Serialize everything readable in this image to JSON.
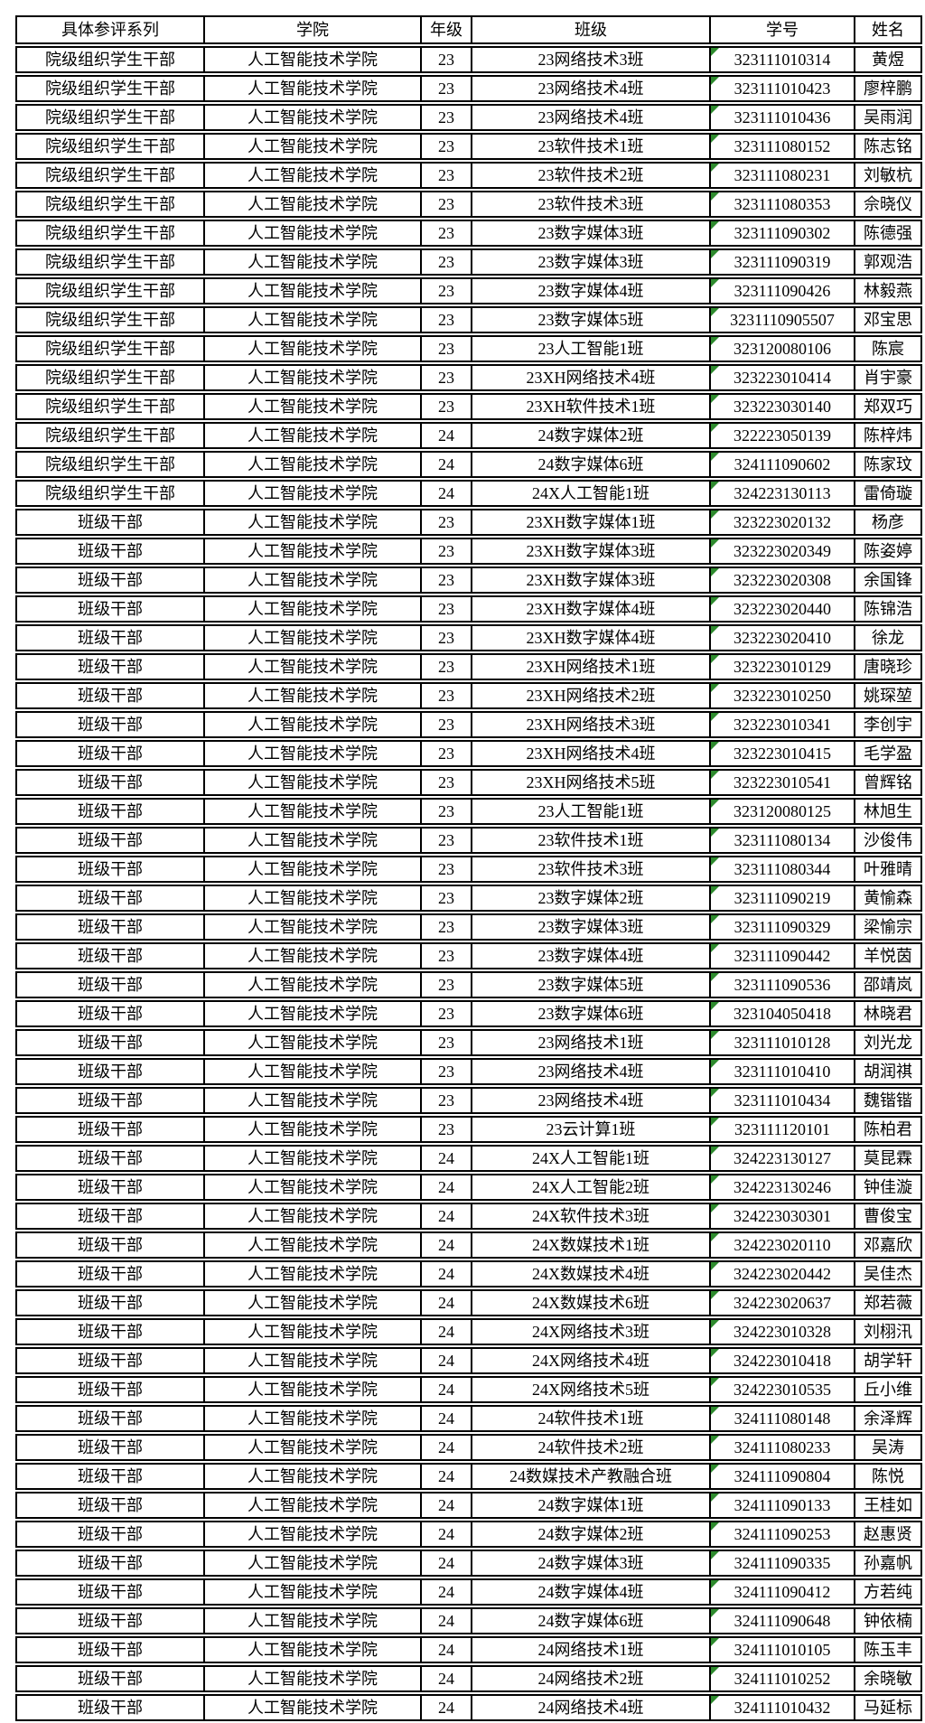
{
  "page": {
    "background": "#ffffff",
    "border_color": "#000000",
    "text_color": "#000000"
  },
  "table": {
    "columns": [
      "具体参评系列",
      "学院",
      "年级",
      "班级",
      "学号",
      "姓名"
    ],
    "cell_names": [
      "series-cell",
      "college-cell",
      "grade-cell",
      "class-cell",
      "student-id-cell",
      "name-cell"
    ],
    "id_column_index": 4,
    "error_indicator": {
      "name": "number-stored-as-text",
      "color": "#2e8b2e"
    },
    "rows": [
      [
        "院级组织学生干部",
        "人工智能技术学院",
        "23",
        "23网络技术3班",
        "323111010314",
        "黄煜"
      ],
      [
        "院级组织学生干部",
        "人工智能技术学院",
        "23",
        "23网络技术4班",
        "323111010423",
        "廖梓鹏"
      ],
      [
        "院级组织学生干部",
        "人工智能技术学院",
        "23",
        "23网络技术4班",
        "323111010436",
        "吴雨润"
      ],
      [
        "院级组织学生干部",
        "人工智能技术学院",
        "23",
        "23软件技术1班",
        "323111080152",
        "陈志铭"
      ],
      [
        "院级组织学生干部",
        "人工智能技术学院",
        "23",
        "23软件技术2班",
        "323111080231",
        "刘敏杭"
      ],
      [
        "院级组织学生干部",
        "人工智能技术学院",
        "23",
        "23软件技术3班",
        "323111080353",
        "佘晓仪"
      ],
      [
        "院级组织学生干部",
        "人工智能技术学院",
        "23",
        "23数字媒体3班",
        "323111090302",
        "陈德强"
      ],
      [
        "院级组织学生干部",
        "人工智能技术学院",
        "23",
        "23数字媒体3班",
        "323111090319",
        "郭观浩"
      ],
      [
        "院级组织学生干部",
        "人工智能技术学院",
        "23",
        "23数字媒体4班",
        "323111090426",
        "林毅燕"
      ],
      [
        "院级组织学生干部",
        "人工智能技术学院",
        "23",
        "23数字媒体5班",
        "3231110905507",
        "邓宝思"
      ],
      [
        "院级组织学生干部",
        "人工智能技术学院",
        "23",
        "23人工智能1班",
        "323120080106",
        "陈宸"
      ],
      [
        "院级组织学生干部",
        "人工智能技术学院",
        "23",
        "23XH网络技术4班",
        "323223010414",
        "肖宇豪"
      ],
      [
        "院级组织学生干部",
        "人工智能技术学院",
        "23",
        "23XH软件技术1班",
        "323223030140",
        "郑双巧"
      ],
      [
        "院级组织学生干部",
        "人工智能技术学院",
        "24",
        "24数字媒体2班",
        "322223050139",
        "陈梓炜"
      ],
      [
        "院级组织学生干部",
        "人工智能技术学院",
        "24",
        "24数字媒体6班",
        "324111090602",
        "陈家玟"
      ],
      [
        "院级组织学生干部",
        "人工智能技术学院",
        "24",
        "24X人工智能1班",
        "324223130113",
        "雷倚璇"
      ],
      [
        "班级干部",
        "人工智能技术学院",
        "23",
        "23XH数字媒体1班",
        "323223020132",
        "杨彦"
      ],
      [
        "班级干部",
        "人工智能技术学院",
        "23",
        "23XH数字媒体3班",
        "323223020349",
        "陈姿婷"
      ],
      [
        "班级干部",
        "人工智能技术学院",
        "23",
        "23XH数字媒体3班",
        "323223020308",
        "余国锋"
      ],
      [
        "班级干部",
        "人工智能技术学院",
        "23",
        "23XH数字媒体4班",
        "323223020440",
        "陈锦浩"
      ],
      [
        "班级干部",
        "人工智能技术学院",
        "23",
        "23XH数字媒体4班",
        "323223020410",
        "徐龙"
      ],
      [
        "班级干部",
        "人工智能技术学院",
        "23",
        "23XH网络技术1班",
        "323223010129",
        "唐晓珍"
      ],
      [
        "班级干部",
        "人工智能技术学院",
        "23",
        "23XH网络技术2班",
        "323223010250",
        "姚琛堃"
      ],
      [
        "班级干部",
        "人工智能技术学院",
        "23",
        "23XH网络技术3班",
        "323223010341",
        "李创宇"
      ],
      [
        "班级干部",
        "人工智能技术学院",
        "23",
        "23XH网络技术4班",
        "323223010415",
        "毛学盈"
      ],
      [
        "班级干部",
        "人工智能技术学院",
        "23",
        "23XH网络技术5班",
        "323223010541",
        "曾辉铭"
      ],
      [
        "班级干部",
        "人工智能技术学院",
        "23",
        "23人工智能1班",
        "323120080125",
        "林旭生"
      ],
      [
        "班级干部",
        "人工智能技术学院",
        "23",
        "23软件技术1班",
        "323111080134",
        "沙俊伟"
      ],
      [
        "班级干部",
        "人工智能技术学院",
        "23",
        "23软件技术3班",
        "323111080344",
        "叶雅晴"
      ],
      [
        "班级干部",
        "人工智能技术学院",
        "23",
        "23数字媒体2班",
        "323111090219",
        "黄愉森"
      ],
      [
        "班级干部",
        "人工智能技术学院",
        "23",
        "23数字媒体3班",
        "323111090329",
        "梁愉宗"
      ],
      [
        "班级干部",
        "人工智能技术学院",
        "23",
        "23数字媒体4班",
        "323111090442",
        "羊悦茵"
      ],
      [
        "班级干部",
        "人工智能技术学院",
        "23",
        "23数字媒体5班",
        "323111090536",
        "邵靖岚"
      ],
      [
        "班级干部",
        "人工智能技术学院",
        "23",
        "23数字媒体6班",
        "323104050418",
        "林晓君"
      ],
      [
        "班级干部",
        "人工智能技术学院",
        "23",
        "23网络技术1班",
        "323111010128",
        "刘光龙"
      ],
      [
        "班级干部",
        "人工智能技术学院",
        "23",
        "23网络技术4班",
        "323111010410",
        "胡润祺"
      ],
      [
        "班级干部",
        "人工智能技术学院",
        "23",
        "23网络技术4班",
        "323111010434",
        "魏锴锴"
      ],
      [
        "班级干部",
        "人工智能技术学院",
        "23",
        "23云计算1班",
        "323111120101",
        "陈柏君"
      ],
      [
        "班级干部",
        "人工智能技术学院",
        "24",
        "24X人工智能1班",
        "324223130127",
        "莫昆霖"
      ],
      [
        "班级干部",
        "人工智能技术学院",
        "24",
        "24X人工智能2班",
        "324223130246",
        "钟佳漩"
      ],
      [
        "班级干部",
        "人工智能技术学院",
        "24",
        "24X软件技术3班",
        "324223030301",
        "曹俊宝"
      ],
      [
        "班级干部",
        "人工智能技术学院",
        "24",
        "24X数媒技术1班",
        "324223020110",
        "邓嘉欣"
      ],
      [
        "班级干部",
        "人工智能技术学院",
        "24",
        "24X数媒技术4班",
        "324223020442",
        "吴佳杰"
      ],
      [
        "班级干部",
        "人工智能技术学院",
        "24",
        "24X数媒技术6班",
        "324223020637",
        "郑若薇"
      ],
      [
        "班级干部",
        "人工智能技术学院",
        "24",
        "24X网络技术3班",
        "324223010328",
        "刘栩汛"
      ],
      [
        "班级干部",
        "人工智能技术学院",
        "24",
        "24X网络技术4班",
        "324223010418",
        "胡学轩"
      ],
      [
        "班级干部",
        "人工智能技术学院",
        "24",
        "24X网络技术5班",
        "324223010535",
        "丘小维"
      ],
      [
        "班级干部",
        "人工智能技术学院",
        "24",
        "24软件技术1班",
        "324111080148",
        "余泽辉"
      ],
      [
        "班级干部",
        "人工智能技术学院",
        "24",
        "24软件技术2班",
        "324111080233",
        "吴涛"
      ],
      [
        "班级干部",
        "人工智能技术学院",
        "24",
        "24数媒技术产教融合班",
        "324111090804",
        "陈悦"
      ],
      [
        "班级干部",
        "人工智能技术学院",
        "24",
        "24数字媒体1班",
        "324111090133",
        "王桂如"
      ],
      [
        "班级干部",
        "人工智能技术学院",
        "24",
        "24数字媒体2班",
        "324111090253",
        "赵惠贤"
      ],
      [
        "班级干部",
        "人工智能技术学院",
        "24",
        "24数字媒体3班",
        "324111090335",
        "孙嘉帆"
      ],
      [
        "班级干部",
        "人工智能技术学院",
        "24",
        "24数字媒体4班",
        "324111090412",
        "方若纯"
      ],
      [
        "班级干部",
        "人工智能技术学院",
        "24",
        "24数字媒体6班",
        "324111090648",
        "钟依楠"
      ],
      [
        "班级干部",
        "人工智能技术学院",
        "24",
        "24网络技术1班",
        "324111010105",
        "陈玉丰"
      ],
      [
        "班级干部",
        "人工智能技术学院",
        "24",
        "24网络技术2班",
        "324111010252",
        "余晓敏"
      ],
      [
        "班级干部",
        "人工智能技术学院",
        "24",
        "24网络技术4班",
        "324111010432",
        "马延标"
      ]
    ]
  }
}
